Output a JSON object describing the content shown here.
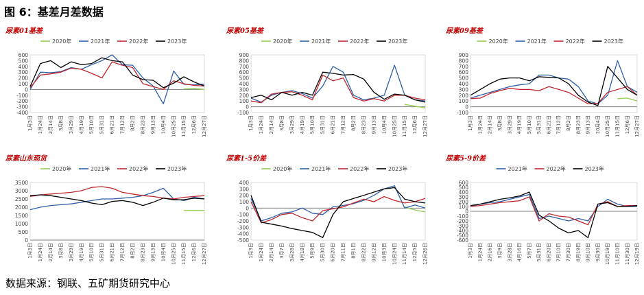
{
  "figure": {
    "title": "图 6：基差月差数据",
    "source": "数据来源：钢联、五矿期货研究中心"
  },
  "colors": {
    "2020年": "#92d050",
    "2021年": "#2e5fa8",
    "2022年": "#c0262d",
    "2023年": "#000000"
  },
  "chart_data": [
    {
      "type": "line",
      "title": "尿素01基差",
      "x_tick_labels": [
        "1月3日",
        "1月24日",
        "2月14日",
        "3月8日",
        "3月29日",
        "4月19日",
        "5月10日",
        "5月31日",
        "6月21日",
        "7月12日",
        "8月2日",
        "8月23日",
        "9月13日",
        "10月4日",
        "10月25日",
        "11月15日",
        "12月6日",
        "12月27日"
      ],
      "ylim": [
        -400,
        600
      ],
      "yticks": [
        -400,
        -300,
        -200,
        -100,
        0,
        100,
        200,
        300,
        400,
        500,
        600
      ],
      "series": [
        {
          "name": "2020年",
          "values": [
            null,
            null,
            null,
            null,
            null,
            null,
            null,
            null,
            null,
            null,
            null,
            null,
            null,
            null,
            null,
            10,
            20,
            0
          ]
        },
        {
          "name": "2021年",
          "values": [
            0,
            300,
            290,
            310,
            380,
            350,
            430,
            500,
            600,
            430,
            420,
            200,
            60,
            -250,
            320,
            90,
            80,
            90
          ]
        },
        {
          "name": "2022年",
          "values": [
            30,
            250,
            270,
            300,
            370,
            350,
            280,
            200,
            480,
            420,
            380,
            100,
            50,
            0,
            150,
            100,
            70,
            60
          ]
        },
        {
          "name": "2023年",
          "values": [
            50,
            450,
            500,
            380,
            480,
            430,
            450,
            550,
            500,
            480,
            250,
            170,
            160,
            30,
            110,
            220,
            130,
            60
          ]
        }
      ]
    },
    {
      "type": "line",
      "title": "尿素05基差",
      "x_tick_labels": [
        "1月3日",
        "1月24日",
        "2月14日",
        "3月8日",
        "3月29日",
        "4月19日",
        "5月10日",
        "5月31日",
        "6月21日",
        "7月12日",
        "8月2日",
        "8月23日",
        "9月13日",
        "10月4日",
        "10月25日",
        "11月15日",
        "12月6日",
        "12月27日"
      ],
      "ylim": [
        -100,
        900
      ],
      "yticks": [
        -100,
        0,
        100,
        200,
        300,
        400,
        500,
        600,
        700,
        800,
        900
      ],
      "series": [
        {
          "name": "2020年",
          "values": [
            null,
            null,
            null,
            null,
            null,
            null,
            null,
            null,
            null,
            null,
            null,
            null,
            null,
            null,
            null,
            40,
            10,
            -20
          ]
        },
        {
          "name": "2021年",
          "values": [
            150,
            80,
            200,
            250,
            280,
            230,
            150,
            360,
            700,
            600,
            200,
            120,
            150,
            200,
            720,
            200,
            120,
            100
          ]
        },
        {
          "name": "2022年",
          "values": [
            100,
            70,
            220,
            250,
            260,
            200,
            120,
            550,
            450,
            500,
            160,
            100,
            140,
            100,
            200,
            200,
            150,
            120
          ]
        },
        {
          "name": "2023年",
          "values": [
            160,
            200,
            120,
            250,
            200,
            250,
            200,
            600,
            580,
            550,
            560,
            480,
            250,
            130,
            220,
            200,
            120,
            80
          ]
        }
      ]
    },
    {
      "type": "line",
      "title": "尿素09基差",
      "x_tick_labels": [
        "1月3日",
        "1月24日",
        "2月14日",
        "3月8日",
        "3月29日",
        "4月19日",
        "5月10日",
        "5月31日",
        "6月21日",
        "7月12日",
        "8月2日",
        "8月23日",
        "9月13日",
        "10月4日",
        "10月25日",
        "11月15日",
        "12月6日",
        "12月27日"
      ],
      "ylim": [
        -100,
        900
      ],
      "yticks": [
        -100,
        0,
        100,
        200,
        300,
        400,
        500,
        600,
        700,
        800,
        900
      ],
      "series": [
        {
          "name": "2020年",
          "values": [
            null,
            null,
            null,
            null,
            null,
            null,
            null,
            null,
            null,
            null,
            null,
            null,
            null,
            null,
            null,
            140,
            150,
            100
          ]
        },
        {
          "name": "2021年",
          "values": [
            150,
            200,
            250,
            300,
            350,
            380,
            400,
            550,
            550,
            500,
            480,
            350,
            100,
            50,
            200,
            800,
            350,
            250
          ]
        },
        {
          "name": "2022年",
          "values": [
            140,
            150,
            230,
            280,
            320,
            300,
            300,
            280,
            350,
            300,
            250,
            150,
            50,
            60,
            250,
            300,
            350,
            200
          ]
        },
        {
          "name": "2023年",
          "values": [
            200,
            300,
            400,
            480,
            500,
            500,
            450,
            520,
            510,
            500,
            400,
            200,
            80,
            20,
            700,
            500,
            300,
            200
          ]
        }
      ]
    },
    {
      "type": "line",
      "title": "尿素山东现货",
      "x_tick_labels": [
        "1月3日",
        "1月24日",
        "2月14日",
        "3月8日",
        "3月29日",
        "4月19日",
        "5月10日",
        "5月31日",
        "6月21日",
        "7月12日",
        "8月2日",
        "8月23日",
        "9月13日",
        "10月4日",
        "10月25日",
        "11月15日",
        "12月6日",
        "12月27日"
      ],
      "ylim": [
        0,
        3500
      ],
      "yticks": [
        0,
        500,
        1000,
        1500,
        2000,
        2500,
        3000,
        3500
      ],
      "series": [
        {
          "name": "2020年",
          "values": [
            null,
            null,
            null,
            null,
            null,
            null,
            null,
            null,
            null,
            null,
            null,
            null,
            null,
            null,
            null,
            1800,
            1810,
            1800
          ]
        },
        {
          "name": "2021年",
          "values": [
            1850,
            2000,
            2100,
            2150,
            2200,
            2300,
            2400,
            2500,
            2500,
            2550,
            2600,
            2700,
            2900,
            3150,
            2500,
            2400,
            2600,
            2500
          ]
        },
        {
          "name": "2022年",
          "values": [
            2650,
            2750,
            2800,
            2850,
            2900,
            3000,
            3200,
            3250,
            3150,
            2900,
            2800,
            2700,
            2650,
            2550,
            2500,
            2600,
            2650,
            2700
          ]
        },
        {
          "name": "2023年",
          "values": [
            2700,
            2750,
            2700,
            2600,
            2500,
            2400,
            2250,
            2150,
            2350,
            2400,
            2300,
            2100,
            2300,
            2550,
            2450,
            2450,
            2550,
            2500
          ]
        }
      ]
    },
    {
      "type": "line",
      "title": "尿素1-5价差",
      "x_tick_labels": [
        "1月3日",
        "1月24日",
        "2月14日",
        "3月7日",
        "3月28日",
        "4月18日",
        "5月9日",
        "5月30日",
        "6月20日",
        "7月11日",
        "8月1日",
        "8月22日",
        "9月12日",
        "10月3日",
        "10月24日",
        "11月14日",
        "12月5日",
        "12月26日"
      ],
      "ylim": [
        -500,
        400
      ],
      "yticks": [
        -500,
        -400,
        -300,
        -200,
        -100,
        0,
        100,
        200,
        300,
        400
      ],
      "series": [
        {
          "name": "2020年",
          "values": [
            null,
            null,
            null,
            null,
            null,
            null,
            null,
            null,
            null,
            null,
            null,
            null,
            null,
            null,
            null,
            20,
            -30,
            -60
          ]
        },
        {
          "name": "2021年",
          "values": [
            150,
            -200,
            -150,
            -80,
            -60,
            0,
            -80,
            -100,
            20,
            40,
            70,
            120,
            200,
            300,
            350,
            0,
            50,
            0
          ]
        },
        {
          "name": "2022年",
          "values": [
            100,
            -230,
            -180,
            -100,
            -80,
            -150,
            -200,
            -40,
            -10,
            20,
            80,
            140,
            100,
            180,
            120,
            80,
            100,
            150
          ]
        },
        {
          "name": "2023年",
          "values": [
            200,
            -220,
            -250,
            -280,
            -320,
            -350,
            -380,
            -460,
            -100,
            100,
            150,
            200,
            250,
            300,
            320,
            140,
            100,
            80
          ]
        }
      ]
    },
    {
      "type": "line",
      "title": "尿素5-9价差",
      "x_tick_labels": [
        "1月3日",
        "1月24日",
        "2月16日",
        "3月9日",
        "3月28日",
        "4月16日",
        "5月7日",
        "5月31日",
        "6月20日",
        "7月10日",
        "7月30日",
        "8月19日",
        "9月10日",
        "9月30日",
        "10月19日",
        "11月10日",
        "11月30日",
        "12月19日"
      ],
      "ylim": [
        -600,
        600
      ],
      "yticks": [
        -600,
        -500,
        -400,
        -300,
        -200,
        -100,
        0,
        100,
        200,
        300,
        400,
        500,
        600
      ],
      "series": [
        {
          "name": "2021年",
          "values": [
            100,
            150,
            180,
            200,
            250,
            300,
            350,
            -150,
            -100,
            -150,
            -200,
            -150,
            -200,
            100,
            250,
            150,
            100,
            100
          ]
        },
        {
          "name": "2022年",
          "values": [
            100,
            120,
            150,
            180,
            200,
            220,
            300,
            -200,
            -50,
            -100,
            -120,
            -200,
            -280,
            150,
            200,
            100,
            120,
            120
          ]
        },
        {
          "name": "2023年",
          "values": [
            120,
            150,
            200,
            250,
            280,
            320,
            400,
            -80,
            -200,
            -350,
            -450,
            -400,
            -550,
            150,
            180,
            100,
            100,
            120
          ]
        }
      ]
    }
  ]
}
